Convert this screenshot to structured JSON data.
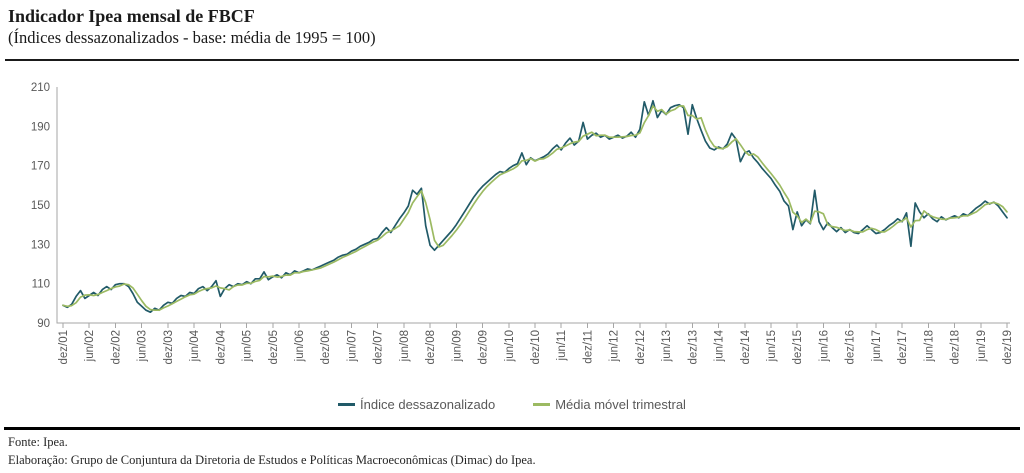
{
  "header": {
    "title": "Indicador Ipea mensal de FBCF",
    "subtitle": "(Índices dessazonalizados - base: média de 1995 = 100)"
  },
  "legend": {
    "items": [
      {
        "label": "Índice dessazonalizado",
        "color": "#215A68"
      },
      {
        "label": "Média móvel trimestral",
        "color": "#9CBA62"
      }
    ]
  },
  "footer": {
    "source": "Fonte: Ipea.",
    "elaboration": "Elaboração: Grupo de Conjuntura da Diretoria de Estudos e Políticas Macroeconômicas (Dimac) do Ipea."
  },
  "chart_data": {
    "type": "line",
    "title": "Indicador Ipea mensal de FBCF",
    "subtitle": "(Índices dessazonalizados - base: média de 1995 = 100)",
    "x_unit": "month",
    "x_range": [
      "dez/01",
      "dez/19"
    ],
    "x_tick_every_months": 6,
    "x_tick_labels": [
      "dez/01",
      "jun/02",
      "dez/02",
      "jun/03",
      "dez/03",
      "jun/04",
      "dez/04",
      "jun/05",
      "dez/05",
      "jun/06",
      "dez/06",
      "jun/07",
      "dez/07",
      "jun/08",
      "dez/08",
      "jun/09",
      "dez/09",
      "jun/10",
      "dez/10",
      "jun/11",
      "dez/11",
      "jun/12",
      "dez/12",
      "jun/13",
      "dez/13",
      "jun/14",
      "dez/14",
      "jun/15",
      "dez/15",
      "jun/16",
      "dez/16",
      "jun/17",
      "dez/17",
      "jun/18",
      "dez/18",
      "jun/19",
      "dez/19"
    ],
    "y_ticks": [
      90,
      110,
      130,
      150,
      170,
      190,
      210
    ],
    "ylim": [
      90,
      210
    ],
    "grid": "off",
    "legend_position": "bottom",
    "axis_color": "#A6A6A6",
    "tick_label_color": "#595959",
    "series": [
      {
        "name": "Índice dessazonalizado",
        "color": "#215A68",
        "values": [
          99,
          98,
          99.5,
          103.5,
          106.5,
          102.5,
          104,
          105.5,
          104,
          107,
          108.5,
          107,
          109.5,
          110,
          110,
          108.5,
          105,
          100.5,
          98.5,
          96.5,
          95.5,
          97.5,
          96.5,
          99,
          100.5,
          100,
          102.5,
          104,
          103.5,
          105.5,
          105,
          107.5,
          108.5,
          106.5,
          108.5,
          111.5,
          103.5,
          107.5,
          109.5,
          108.5,
          110,
          109.5,
          111,
          110,
          112.5,
          112.5,
          116,
          112,
          113.5,
          114.5,
          113,
          115.5,
          114.5,
          116.5,
          115.5,
          116.5,
          117.5,
          117,
          118,
          119,
          120,
          121,
          122,
          123.5,
          124.5,
          125,
          126.5,
          127.5,
          129,
          130,
          131,
          132.5,
          133,
          136,
          138.5,
          136,
          139.5,
          143,
          146,
          149.5,
          157.5,
          155.5,
          158.5,
          139.5,
          129.5,
          127,
          129.5,
          132,
          134.5,
          137,
          140,
          143.5,
          147,
          150.5,
          154,
          157,
          159.5,
          161.5,
          163.5,
          165.5,
          167,
          166.5,
          168.5,
          170,
          171,
          176.5,
          170.5,
          174,
          172.5,
          173.5,
          174.5,
          176,
          178.5,
          180.5,
          178,
          181.5,
          184,
          180.5,
          182.5,
          192,
          183.5,
          185.5,
          186.5,
          184.5,
          185.5,
          183.5,
          184.5,
          185.5,
          184,
          185,
          187,
          184.5,
          188.5,
          202.5,
          195.5,
          203,
          194.5,
          198,
          196,
          199.5,
          200.5,
          201,
          199.5,
          186,
          201,
          194,
          188,
          182.5,
          179,
          178,
          179.5,
          178.5,
          181,
          186.5,
          183.5,
          172,
          176.5,
          177.5,
          174,
          171.5,
          168.5,
          166,
          163.5,
          160,
          157,
          152,
          149.5,
          137.5,
          146.5,
          139.5,
          142.5,
          140.5,
          157.5,
          141.5,
          137.5,
          141,
          138.5,
          136.5,
          138.5,
          136,
          137.5,
          136,
          135.5,
          137.5,
          139.5,
          137.5,
          135.5,
          136,
          137.5,
          139.5,
          141,
          143,
          141.5,
          146,
          129,
          151,
          146.5,
          143.5,
          145.5,
          143,
          141.5,
          144,
          142.5,
          143.5,
          144.5,
          143.5,
          145.5,
          144.5,
          146.5,
          148.5,
          150,
          152,
          150.5,
          151.5,
          149.5,
          146.5,
          143.5
        ]
      },
      {
        "name": "Média móvel trimestral",
        "color": "#9CBA62",
        "derived": "trailing-3-month-mean-of-series-0"
      }
    ]
  }
}
